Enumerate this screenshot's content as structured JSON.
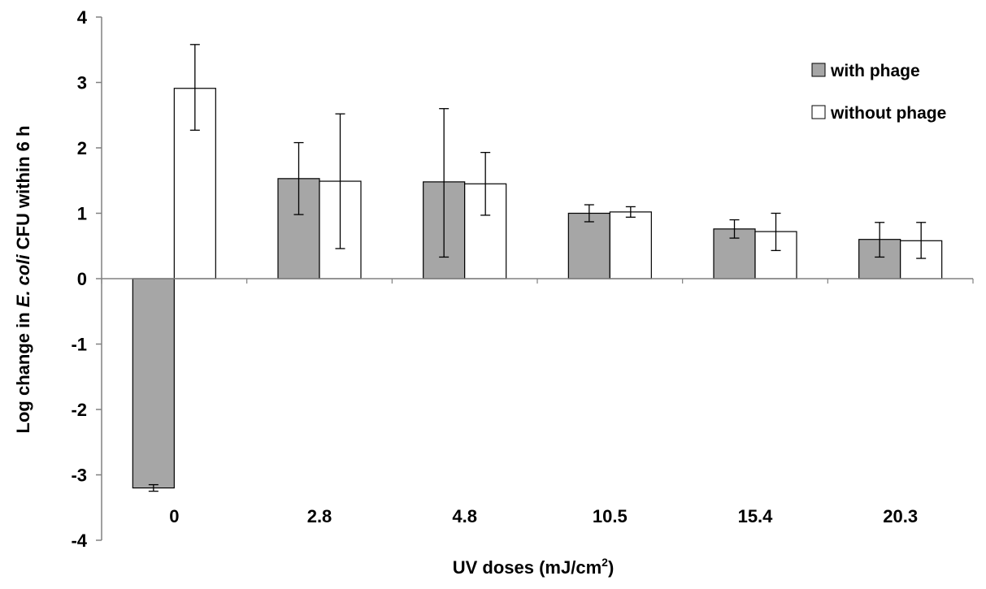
{
  "chart_data": {
    "type": "bar",
    "categories": [
      "0",
      "2.8",
      "4.8",
      "10.5",
      "15.4",
      "20.3"
    ],
    "series": [
      {
        "name": "with phage",
        "color": "#a6a6a6",
        "values": [
          -3.2,
          1.53,
          1.48,
          1.0,
          0.76,
          0.6
        ],
        "err_low": [
          0.05,
          0.55,
          1.15,
          0.13,
          0.14,
          0.27
        ],
        "err_high": [
          0.05,
          0.55,
          1.12,
          0.13,
          0.14,
          0.26
        ]
      },
      {
        "name": "without phage",
        "color": "#ffffff",
        "values": [
          2.91,
          1.49,
          1.45,
          1.02,
          0.72,
          0.58
        ],
        "err_low": [
          0.64,
          1.03,
          0.48,
          0.08,
          0.29,
          0.27
        ],
        "err_high": [
          0.67,
          1.03,
          0.48,
          0.08,
          0.28,
          0.28
        ]
      }
    ],
    "ylim": [
      -4,
      4
    ],
    "yticks": [
      "-4",
      "-3",
      "-2",
      "-1",
      "0",
      "1",
      "2",
      "3",
      "4"
    ],
    "xlabel_main": "UV doses (mJ/cm",
    "xlabel_sup": "2",
    "xlabel_end": ")",
    "ylabel_pre": "Log change in ",
    "ylabel_italic": "E. coli",
    "ylabel_post": " CFU within 6 h",
    "grid": false,
    "legend_position": "top-right"
  }
}
